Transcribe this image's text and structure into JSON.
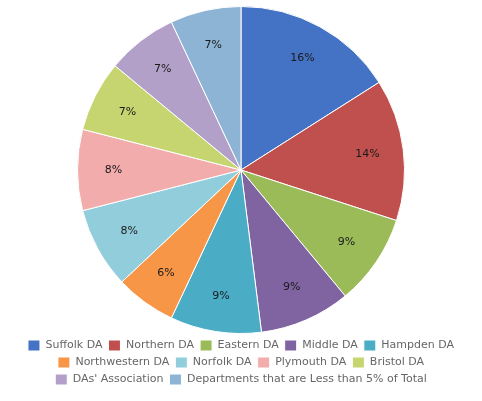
{
  "chart_data": {
    "type": "pie",
    "categories": [
      "Suffolk DA",
      "Northern DA",
      "Eastern DA",
      "Middle DA",
      "Hampden DA",
      "Northwestern DA",
      "Norfolk DA",
      "Plymouth DA",
      "Bristol DA",
      "DAs' Association",
      "Departments that are Less than 5% of Total"
    ],
    "values": [
      16,
      14,
      9,
      9,
      9,
      6,
      8,
      8,
      7,
      7,
      7
    ],
    "value_labels": [
      "16%",
      "14%",
      "9%",
      "9%",
      "9%",
      "6%",
      "8%",
      "8%",
      "7%",
      "7%",
      "7%"
    ],
    "colors": [
      "#4472C4",
      "#C0504D",
      "#9BBB59",
      "#8064A2",
      "#4BACC6",
      "#F79646",
      "#92CDDC",
      "#F2ACAC",
      "#C6D56F",
      "#B3A0C8",
      "#8DB4D4"
    ],
    "data_labels": true,
    "legend": "bottom"
  }
}
